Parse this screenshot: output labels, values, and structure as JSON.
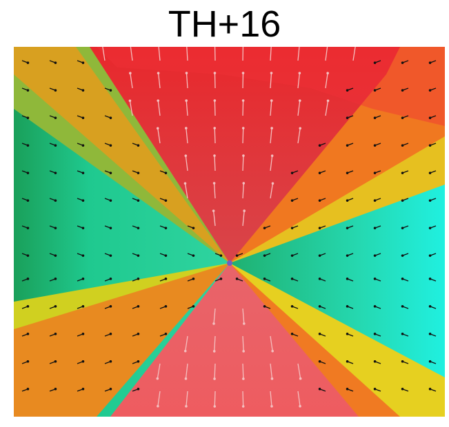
{
  "title": "TH+16"
}
